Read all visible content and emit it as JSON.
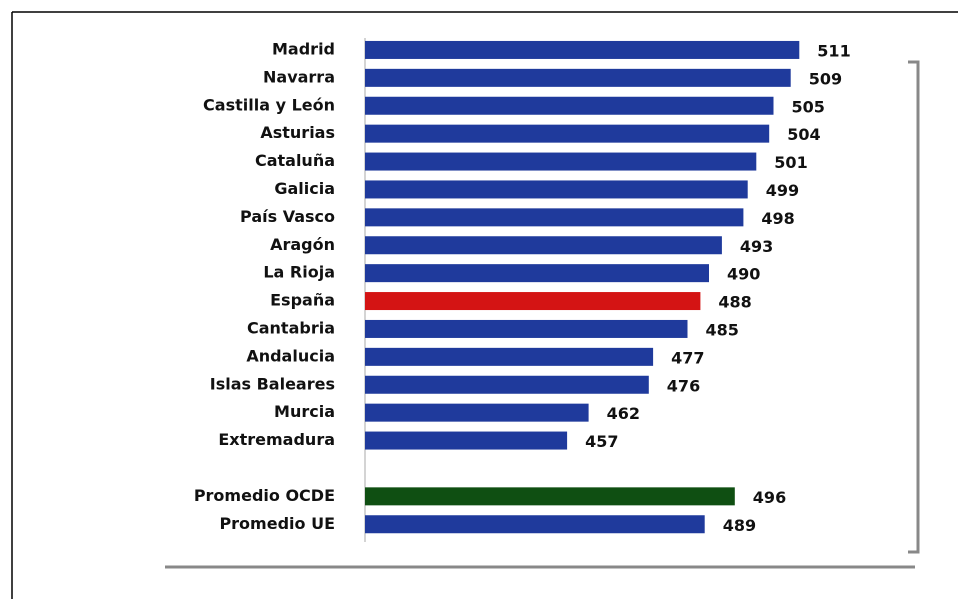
{
  "chart_data": {
    "type": "hbar",
    "categories": [
      "Madrid",
      "Navarra",
      "Castilla y León",
      "Asturias",
      "Cataluña",
      "Galicia",
      "País Vasco",
      "Aragón",
      "La Rioja",
      "España",
      "Cantabria",
      "Andalucia",
      "Islas Baleares",
      "Murcia",
      "Extremadura",
      null,
      "Promedio OCDE",
      "Promedio UE"
    ],
    "values": [
      511,
      509,
      505,
      504,
      501,
      499,
      498,
      493,
      490,
      488,
      485,
      477,
      476,
      462,
      457,
      null,
      496,
      489
    ],
    "colors": [
      "#1f3a9c",
      "#1f3a9c",
      "#1f3a9c",
      "#1f3a9c",
      "#1f3a9c",
      "#1f3a9c",
      "#1f3a9c",
      "#1f3a9c",
      "#1f3a9c",
      "#d41414",
      "#1f3a9c",
      "#1f3a9c",
      "#1f3a9c",
      "#1f3a9c",
      "#1f3a9c",
      null,
      "#0f4f12",
      "#1f3a9c"
    ],
    "xlim": [
      410,
      540
    ]
  }
}
